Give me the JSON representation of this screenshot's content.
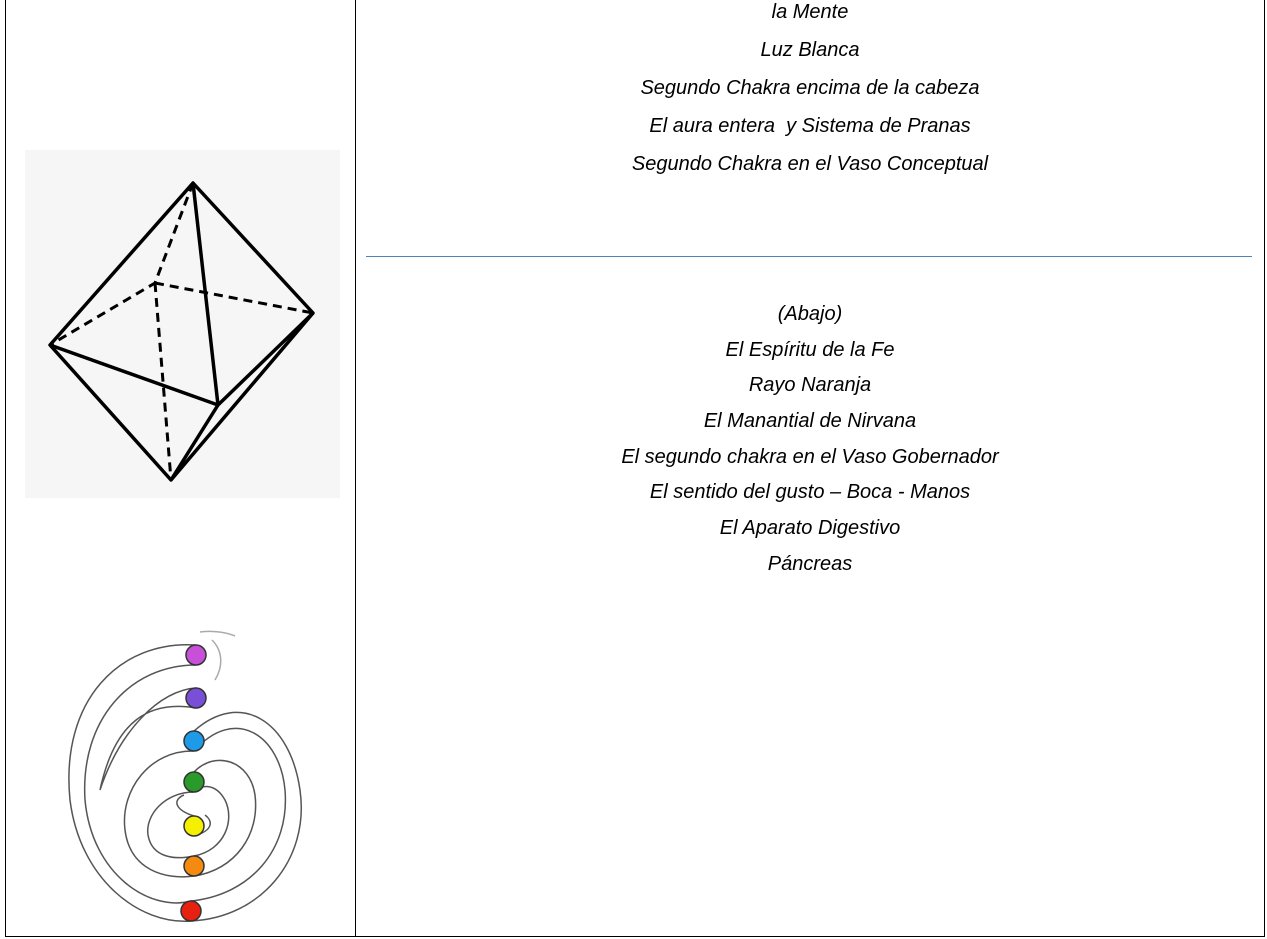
{
  "table": {
    "rows": [
      {
        "right": {
          "top_lines": [
            "la Mente",
            "Luz Blanca",
            "Segundo Chakra encima de la cabeza",
            "El aura entera  y Sistema de Pranas",
            "Segundo Chakra en el Vaso Conceptual"
          ],
          "bottom_lines": [
            "(Abajo)",
            "El Espíritu de la Fe",
            "Rayo Naranja",
            "El Manantial de Nirvana",
            "El segundo chakra en el Vaso Gobernador",
            "El sentido del gusto – Boca - Manos",
            "El Aparato Digestivo",
            "Páncreas"
          ]
        }
      }
    ]
  }
}
